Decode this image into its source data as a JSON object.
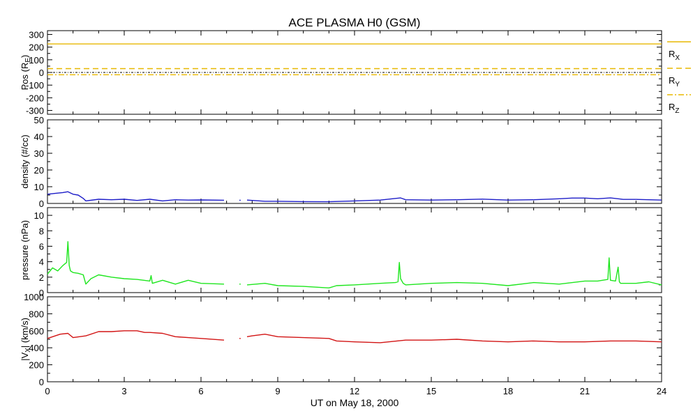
{
  "title": "ACE PLASMA H0 (GSM)",
  "xaxis": {
    "label": "UT on May 18, 2000",
    "ticks": [
      0,
      3,
      6,
      9,
      12,
      15,
      18,
      21,
      24
    ],
    "range": [
      0,
      24
    ]
  },
  "colors": {
    "axes": "#000000",
    "position": "#e8b800",
    "density": "#1c1cc8",
    "pressure": "#1ee61e",
    "velocity": "#d21414"
  },
  "chart_data": [
    {
      "type": "line",
      "panel": "position",
      "ylabel": "Pos (R",
      "ylabel_sub": "E",
      "ylabel_tail": ")",
      "ylim": [
        -330,
        330
      ],
      "yticks": [
        300,
        200,
        100,
        0,
        -100,
        -200,
        -300
      ],
      "zero_line": true,
      "series": [
        {
          "name": "R",
          "sub": "X",
          "style": "solid",
          "x": [
            0,
            24
          ],
          "values": [
            225,
            225
          ]
        },
        {
          "name": "R",
          "sub": "Y",
          "style": "dashed",
          "x": [
            0,
            24
          ],
          "values": [
            30,
            30
          ]
        },
        {
          "name": "R",
          "sub": "Z",
          "style": "dashdot",
          "x": [
            0,
            24
          ],
          "values": [
            -18,
            -18
          ]
        }
      ]
    },
    {
      "type": "line",
      "panel": "density",
      "ylabel": "density (#/cc)",
      "ylim": [
        0,
        50
      ],
      "yticks": [
        50,
        40,
        30,
        20,
        10,
        0
      ],
      "series": [
        {
          "name": "density",
          "x": [
            0,
            0.3,
            0.6,
            0.8,
            1.0,
            1.2,
            1.4,
            1.5,
            2,
            2.5,
            3,
            3.5,
            4,
            4.5,
            5,
            5.5,
            6,
            6.9,
            null,
            7.5,
            7.55,
            null,
            7.8,
            8.5,
            9,
            10,
            11,
            12,
            13,
            13.8,
            14,
            15,
            16,
            17,
            18,
            19,
            20,
            20.5,
            21,
            21.5,
            22,
            22.5,
            23,
            24
          ],
          "values": [
            5.5,
            6,
            6.5,
            7,
            5.5,
            5,
            3,
            1.5,
            2.5,
            2.2,
            2.5,
            1.8,
            2.5,
            1.5,
            2.2,
            2,
            2.1,
            1.9,
            null,
            1.9,
            1.9,
            null,
            2,
            1.3,
            1.3,
            1.1,
            1.0,
            1.5,
            2,
            3.3,
            2.2,
            2,
            2.2,
            2.6,
            2,
            2.2,
            2.8,
            3.2,
            3.2,
            2.8,
            3.3,
            2.4,
            2.4,
            2
          ]
        }
      ]
    },
    {
      "type": "line",
      "panel": "pressure",
      "ylabel": "pressure (nPa)",
      "ylim": [
        0,
        11
      ],
      "yticks": [
        10,
        8,
        6,
        4,
        2,
        0
      ],
      "series": [
        {
          "name": "pressure",
          "x": [
            0,
            0.2,
            0.4,
            0.6,
            0.75,
            0.8,
            0.85,
            0.9,
            1.0,
            1.2,
            1.4,
            1.5,
            1.7,
            2.0,
            2.5,
            3.0,
            3.5,
            4.0,
            4.05,
            4.1,
            4.5,
            5.0,
            5.5,
            6.0,
            6.9,
            null,
            7.5,
            7.55,
            null,
            7.8,
            8.5,
            9.0,
            10,
            11,
            11.3,
            12,
            13,
            13.6,
            13.7,
            13.75,
            13.8,
            13.9,
            14,
            15,
            16,
            17,
            18,
            19,
            20,
            21,
            21.5,
            21.9,
            21.95,
            22.0,
            22.2,
            22.3,
            22.35,
            22.4,
            23,
            23.5,
            24
          ],
          "values": [
            2.4,
            3.2,
            2.8,
            3.5,
            3.9,
            6.6,
            3.5,
            2.8,
            2.6,
            2.5,
            2.3,
            1.1,
            1.8,
            2.3,
            2.0,
            1.8,
            1.7,
            1.5,
            2.2,
            1.2,
            1.6,
            1.1,
            1.6,
            1.2,
            1.1,
            null,
            1.1,
            1.1,
            null,
            1.0,
            1.2,
            0.9,
            0.8,
            0.6,
            0.9,
            1.0,
            1.2,
            1.3,
            1.4,
            3.9,
            1.8,
            1.2,
            1.0,
            1.2,
            1.3,
            1.2,
            0.9,
            1.3,
            1.1,
            1.5,
            1.5,
            1.7,
            4.5,
            1.6,
            1.5,
            3.3,
            1.4,
            1.2,
            1.2,
            1.4,
            1.0
          ]
        }
      ]
    },
    {
      "type": "line",
      "panel": "velocity",
      "ylabel": "|V",
      "ylabel_sub": "X",
      "ylabel_tail": "| (km/s)",
      "ylim": [
        0,
        1000
      ],
      "yticks": [
        1000,
        800,
        600,
        400,
        200,
        0
      ],
      "series": [
        {
          "name": "velocity",
          "x": [
            0,
            0.5,
            0.8,
            1.0,
            1.5,
            2,
            2.5,
            3,
            3.5,
            3.8,
            4,
            4.5,
            5,
            5.5,
            6,
            6.9,
            null,
            7.5,
            7.55,
            null,
            7.8,
            8.0,
            8.5,
            9,
            10,
            11,
            11.3,
            12,
            13,
            14,
            15,
            16,
            17,
            18,
            19,
            20,
            21,
            22,
            23,
            24
          ],
          "values": [
            510,
            560,
            570,
            520,
            540,
            590,
            590,
            600,
            600,
            580,
            580,
            570,
            530,
            520,
            510,
            490,
            null,
            510,
            510,
            null,
            530,
            540,
            560,
            530,
            520,
            510,
            480,
            470,
            460,
            490,
            490,
            500,
            480,
            470,
            480,
            470,
            470,
            480,
            480,
            470
          ]
        }
      ]
    }
  ]
}
